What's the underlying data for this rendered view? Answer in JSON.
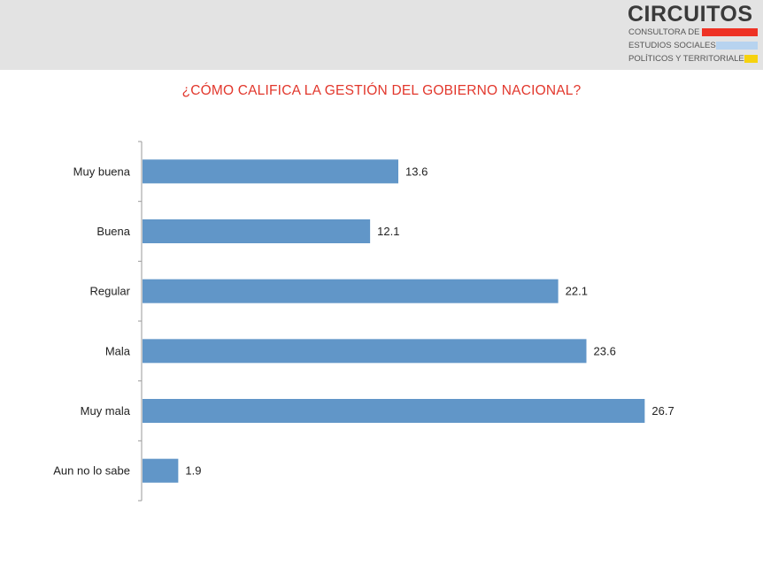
{
  "header": {
    "logo": {
      "name": "CIRCUITOS",
      "line1": "CONSULTORA DE",
      "line2": "ESTUDIOS SOCIALES,",
      "line3": "POLÍTICOS Y TERRITORIALES"
    }
  },
  "colors": {
    "bar": "#6196c8",
    "title": "#e2372c",
    "logo_red": "#ee3224",
    "logo_blue": "#b7d3ef",
    "logo_yellow": "#f6d20e"
  },
  "chart_data": {
    "type": "bar",
    "orientation": "horizontal",
    "title": "¿CÓMO CALIFICA LA GESTIÓN DEL GOBIERNO NACIONAL?",
    "xlabel": "",
    "ylabel": "",
    "categories": [
      "Muy buena",
      "Buena",
      "Regular",
      "Mala",
      "Muy mala",
      "Aun no lo sabe"
    ],
    "values": [
      13.6,
      12.1,
      22.1,
      23.6,
      26.7,
      1.9
    ],
    "value_labels": [
      "13.6",
      "12.1",
      "22.1",
      "23.6",
      "26.7",
      "1.9"
    ],
    "xlim": [
      0,
      27
    ],
    "grid": false,
    "legend": "none"
  }
}
